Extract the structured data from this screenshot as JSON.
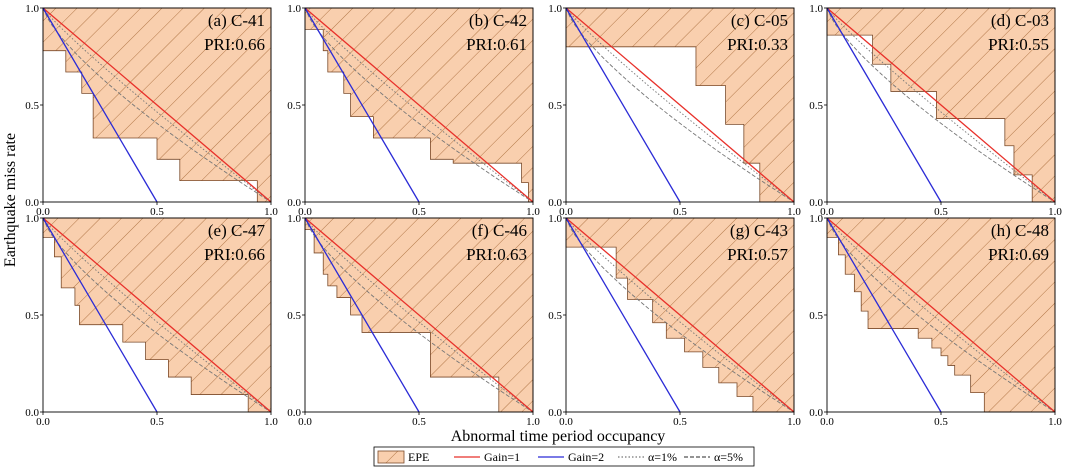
{
  "figure": {
    "xlabel": "Abnormal time period occupancy",
    "ylabel": "Earthquake miss rate"
  },
  "legend": [
    {
      "key": "epe",
      "label": "EPE",
      "style": "hatch"
    },
    {
      "key": "gain1",
      "label": "Gain=1",
      "style": "line",
      "color": "#e8302a"
    },
    {
      "key": "gain2",
      "label": "Gain=2",
      "style": "line",
      "color": "#2b2bd6"
    },
    {
      "key": "a1",
      "label": "α=1%",
      "style": "dotted",
      "color": "#777777"
    },
    {
      "key": "a5",
      "label": "α=5%",
      "style": "dashed",
      "color": "#555555"
    }
  ],
  "colors": {
    "epe_fill": "#f9cfae",
    "epe_edge": "#7a4a2a",
    "hatch": "#a0602e",
    "gain1": "#e8302a",
    "gain2": "#2b2bd6",
    "alpha_lines": "#777777"
  },
  "chart_data": [
    {
      "type": "area",
      "panel": "(a) C-41",
      "title": "(a) C-41",
      "pri_label": "PRI:0.66",
      "xlim": [
        0,
        1
      ],
      "ylim": [
        0,
        1
      ],
      "xticks": [
        "0.0",
        "0.5",
        "1.0"
      ],
      "yticks": [
        "0.0",
        "0.5",
        "1.0"
      ],
      "epe_curve": [
        [
          0,
          1
        ],
        [
          0,
          0.78
        ],
        [
          0.1,
          0.78
        ],
        [
          0.1,
          0.67
        ],
        [
          0.17,
          0.67
        ],
        [
          0.17,
          0.56
        ],
        [
          0.22,
          0.56
        ],
        [
          0.22,
          0.33
        ],
        [
          0.5,
          0.33
        ],
        [
          0.5,
          0.22
        ],
        [
          0.6,
          0.22
        ],
        [
          0.6,
          0.11
        ],
        [
          0.94,
          0.11
        ],
        [
          0.94,
          0
        ],
        [
          1,
          0
        ]
      ]
    },
    {
      "type": "area",
      "panel": "(b) C-42",
      "title": "(b) C-42",
      "pri_label": "PRI:0.61",
      "xlim": [
        0,
        1
      ],
      "ylim": [
        0,
        1
      ],
      "xticks": [
        "0.0",
        "0.5",
        "1.0"
      ],
      "yticks": [
        "0.0",
        "0.5",
        "1.0"
      ],
      "epe_curve": [
        [
          0,
          1
        ],
        [
          0,
          0.89
        ],
        [
          0.08,
          0.89
        ],
        [
          0.08,
          0.78
        ],
        [
          0.1,
          0.78
        ],
        [
          0.1,
          0.67
        ],
        [
          0.17,
          0.67
        ],
        [
          0.17,
          0.56
        ],
        [
          0.2,
          0.56
        ],
        [
          0.2,
          0.44
        ],
        [
          0.3,
          0.44
        ],
        [
          0.3,
          0.33
        ],
        [
          0.55,
          0.33
        ],
        [
          0.55,
          0.22
        ],
        [
          0.65,
          0.22
        ],
        [
          0.65,
          0.2
        ],
        [
          0.95,
          0.2
        ],
        [
          0.95,
          0.1
        ],
        [
          0.98,
          0.1
        ],
        [
          0.98,
          0
        ],
        [
          1,
          0
        ]
      ]
    },
    {
      "type": "area",
      "panel": "(c) C-05",
      "title": "(c) C-05",
      "pri_label": "PRI:0.33",
      "xlim": [
        0,
        1
      ],
      "ylim": [
        0,
        1
      ],
      "xticks": [
        "0.0",
        "0.5",
        "1.0"
      ],
      "yticks": [
        "0.0",
        "0.5",
        "1.0"
      ],
      "epe_curve": [
        [
          0,
          1
        ],
        [
          0,
          0.8
        ],
        [
          0.57,
          0.8
        ],
        [
          0.57,
          0.6
        ],
        [
          0.7,
          0.6
        ],
        [
          0.7,
          0.4
        ],
        [
          0.78,
          0.4
        ],
        [
          0.78,
          0.2
        ],
        [
          0.85,
          0.2
        ],
        [
          0.85,
          0
        ],
        [
          1,
          0
        ]
      ]
    },
    {
      "type": "area",
      "panel": "(d) C-03",
      "title": "(d) C-03",
      "pri_label": "PRI:0.55",
      "xlim": [
        0,
        1
      ],
      "ylim": [
        0,
        1
      ],
      "xticks": [
        "0.0",
        "0.5",
        "1.0"
      ],
      "yticks": [
        "0.0",
        "0.5",
        "1.0"
      ],
      "epe_curve": [
        [
          0,
          1
        ],
        [
          0,
          0.86
        ],
        [
          0.2,
          0.86
        ],
        [
          0.2,
          0.71
        ],
        [
          0.28,
          0.71
        ],
        [
          0.28,
          0.57
        ],
        [
          0.48,
          0.57
        ],
        [
          0.48,
          0.43
        ],
        [
          0.78,
          0.43
        ],
        [
          0.78,
          0.29
        ],
        [
          0.82,
          0.29
        ],
        [
          0.82,
          0.14
        ],
        [
          0.9,
          0.14
        ],
        [
          0.9,
          0
        ],
        [
          1,
          0
        ]
      ]
    },
    {
      "type": "area",
      "panel": "(e) C-47",
      "title": "(e) C-47",
      "pri_label": "PRI:0.66",
      "xlim": [
        0,
        1
      ],
      "ylim": [
        0,
        1
      ],
      "xticks": [
        "0.0",
        "0.5",
        "1.0"
      ],
      "yticks": [
        "0.0",
        "0.5",
        "1.0"
      ],
      "epe_curve": [
        [
          0,
          1
        ],
        [
          0,
          0.9
        ],
        [
          0.05,
          0.9
        ],
        [
          0.05,
          0.8
        ],
        [
          0.08,
          0.8
        ],
        [
          0.08,
          0.64
        ],
        [
          0.14,
          0.64
        ],
        [
          0.14,
          0.55
        ],
        [
          0.16,
          0.55
        ],
        [
          0.16,
          0.45
        ],
        [
          0.35,
          0.45
        ],
        [
          0.35,
          0.36
        ],
        [
          0.45,
          0.36
        ],
        [
          0.45,
          0.27
        ],
        [
          0.55,
          0.27
        ],
        [
          0.55,
          0.18
        ],
        [
          0.65,
          0.18
        ],
        [
          0.65,
          0.09
        ],
        [
          0.9,
          0.09
        ],
        [
          0.9,
          0
        ],
        [
          1,
          0
        ]
      ]
    },
    {
      "type": "area",
      "panel": "(f) C-46",
      "title": "(f) C-46",
      "pri_label": "PRI:0.63",
      "xlim": [
        0,
        1
      ],
      "ylim": [
        0,
        1
      ],
      "xticks": [
        "0.0",
        "0.5",
        "1.0"
      ],
      "yticks": [
        "0.0",
        "0.5",
        "1.0"
      ],
      "epe_curve": [
        [
          0,
          1
        ],
        [
          0,
          0.94
        ],
        [
          0.04,
          0.94
        ],
        [
          0.04,
          0.82
        ],
        [
          0.08,
          0.82
        ],
        [
          0.08,
          0.71
        ],
        [
          0.1,
          0.71
        ],
        [
          0.1,
          0.65
        ],
        [
          0.14,
          0.65
        ],
        [
          0.14,
          0.59
        ],
        [
          0.2,
          0.59
        ],
        [
          0.2,
          0.5
        ],
        [
          0.25,
          0.5
        ],
        [
          0.25,
          0.41
        ],
        [
          0.55,
          0.41
        ],
        [
          0.55,
          0.18
        ],
        [
          0.85,
          0.18
        ],
        [
          0.85,
          0
        ],
        [
          1,
          0
        ]
      ]
    },
    {
      "type": "area",
      "panel": "(g) C-43",
      "title": "(g) C-43",
      "pri_label": "PRI:0.57",
      "xlim": [
        0,
        1
      ],
      "ylim": [
        0,
        1
      ],
      "xticks": [
        "0.0",
        "0.5",
        "1.0"
      ],
      "yticks": [
        "0.0",
        "0.5",
        "1.0"
      ],
      "epe_curve": [
        [
          0,
          1
        ],
        [
          0,
          0.85
        ],
        [
          0.22,
          0.85
        ],
        [
          0.22,
          0.69
        ],
        [
          0.27,
          0.69
        ],
        [
          0.27,
          0.58
        ],
        [
          0.38,
          0.58
        ],
        [
          0.38,
          0.46
        ],
        [
          0.44,
          0.46
        ],
        [
          0.44,
          0.38
        ],
        [
          0.52,
          0.38
        ],
        [
          0.52,
          0.31
        ],
        [
          0.6,
          0.31
        ],
        [
          0.6,
          0.23
        ],
        [
          0.67,
          0.23
        ],
        [
          0.67,
          0.15
        ],
        [
          0.75,
          0.15
        ],
        [
          0.75,
          0.08
        ],
        [
          0.82,
          0.08
        ],
        [
          0.82,
          0
        ],
        [
          1,
          0
        ]
      ]
    },
    {
      "type": "area",
      "panel": "(h) C-48",
      "title": "(h) C-48",
      "pri_label": "PRI:0.69",
      "xlim": [
        0,
        1
      ],
      "ylim": [
        0,
        1
      ],
      "xticks": [
        "0.0",
        "0.5",
        "1.0"
      ],
      "yticks": [
        "0.0",
        "0.5",
        "1.0"
      ],
      "epe_curve": [
        [
          0,
          1
        ],
        [
          0,
          0.9
        ],
        [
          0.05,
          0.9
        ],
        [
          0.05,
          0.81
        ],
        [
          0.08,
          0.81
        ],
        [
          0.08,
          0.71
        ],
        [
          0.12,
          0.71
        ],
        [
          0.12,
          0.62
        ],
        [
          0.15,
          0.62
        ],
        [
          0.15,
          0.52
        ],
        [
          0.18,
          0.52
        ],
        [
          0.18,
          0.43
        ],
        [
          0.4,
          0.43
        ],
        [
          0.4,
          0.38
        ],
        [
          0.46,
          0.38
        ],
        [
          0.46,
          0.33
        ],
        [
          0.5,
          0.33
        ],
        [
          0.5,
          0.29
        ],
        [
          0.53,
          0.29
        ],
        [
          0.53,
          0.24
        ],
        [
          0.56,
          0.24
        ],
        [
          0.56,
          0.19
        ],
        [
          0.63,
          0.19
        ],
        [
          0.63,
          0.1
        ],
        [
          0.69,
          0.1
        ],
        [
          0.69,
          0
        ],
        [
          1,
          0
        ]
      ]
    }
  ]
}
